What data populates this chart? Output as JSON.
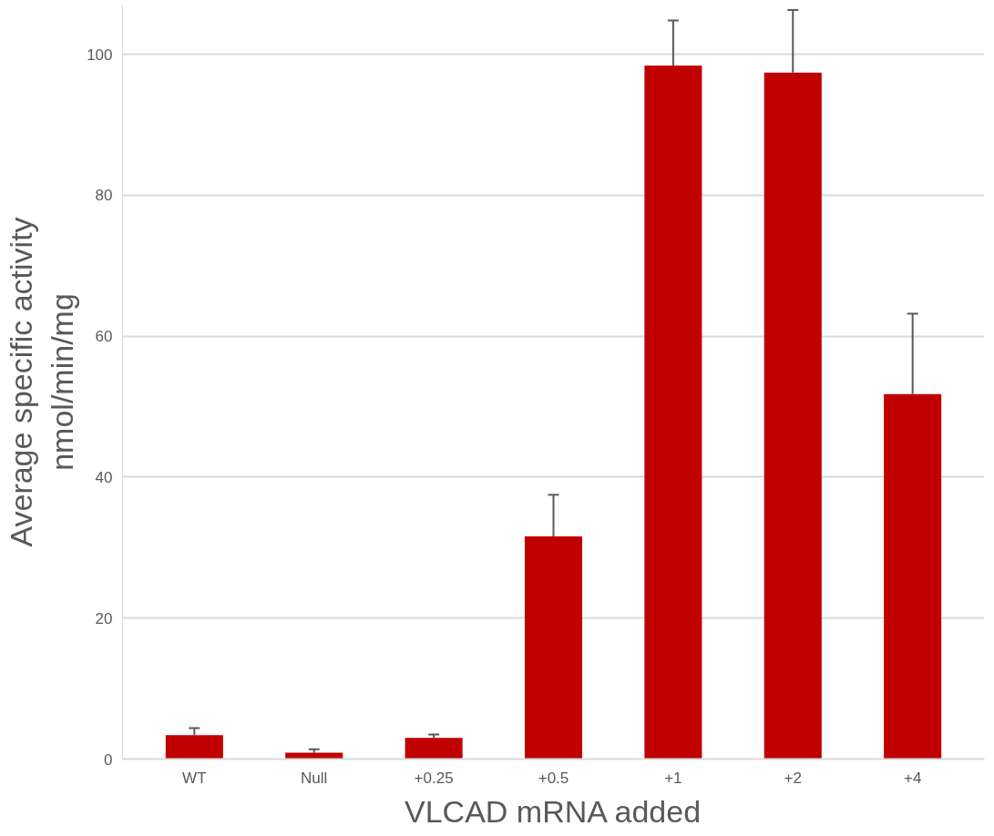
{
  "chart_data": {
    "type": "bar",
    "xlabel": "VLCAD mRNA added",
    "ylabel": "Average specific activity\nnmol/min/mg",
    "categories": [
      "WT",
      "Null",
      "+0.25",
      "+0.5",
      "+1",
      "+2",
      "+4"
    ],
    "values": [
      3.4,
      0.9,
      3.0,
      31.6,
      98.4,
      97.4,
      51.8
    ],
    "errors": [
      [
        3.4,
        4.4
      ],
      [
        0.9,
        1.4
      ],
      [
        3.0,
        3.5
      ],
      [
        31.6,
        37.5
      ],
      [
        98.4,
        104.8
      ],
      [
        97.4,
        106.3
      ],
      [
        51.8,
        63.2
      ]
    ],
    "color": "#c00000",
    "ylim": [
      0,
      107
    ],
    "yticks": [
      0,
      20,
      40,
      60,
      80,
      100
    ],
    "grid": "y"
  }
}
